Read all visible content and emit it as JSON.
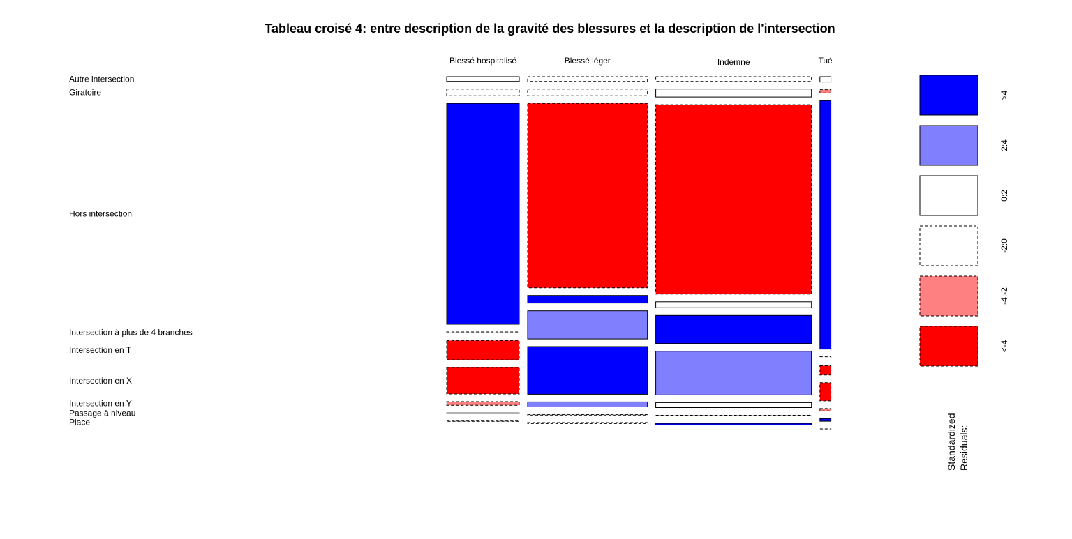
{
  "chart_data": {
    "type": "mosaic",
    "title": "Tableau croisé 4: entre description de la gravité des blessures et la description de l'intersection",
    "column_labels": [
      "Blessé hospitalisé",
      "Blessé léger",
      "Indemne",
      "Tué"
    ],
    "row_labels": [
      "Autre intersection",
      "Giratoire",
      "Hors intersection",
      "Intersection à plus de 4 branches",
      "Intersection en T",
      "Intersection en X",
      "Intersection en Y",
      "Passage à niveau",
      "Place"
    ],
    "column_shares": [
      0.198,
      0.327,
      0.425,
      0.03
    ],
    "row_shares_by_column": [
      [
        0.014,
        0.02,
        0.667,
        0.003,
        0.058,
        0.08,
        0.011,
        0.001,
        0.001
      ],
      [
        0.014,
        0.02,
        0.557,
        0.023,
        0.085,
        0.144,
        0.015,
        0.001,
        0.003
      ],
      [
        0.014,
        0.024,
        0.572,
        0.018,
        0.085,
        0.132,
        0.015,
        0.001,
        0.005
      ],
      [
        0.016,
        0.01,
        0.75,
        0.004,
        0.028,
        0.055,
        0.007,
        0.008,
        0.003
      ]
    ],
    "residual_class_by_column": [
      [
        "0:2",
        "-2:0",
        ">4",
        "-2:0",
        "<-4",
        "<-4",
        "-4:-2",
        "0:2",
        "-2:0"
      ],
      [
        "-2:0",
        "-2:0",
        "<-4",
        ">4",
        "2:4",
        ">4",
        "2:4",
        "-2:0",
        "-2:0"
      ],
      [
        "-2:0",
        "0:2",
        "<-4",
        "0:2",
        ">4",
        "2:4",
        "0:2",
        "-2:0",
        ">4"
      ],
      [
        "0:2",
        "-4:-2",
        ">4",
        "-2:0",
        "<-4",
        "<-4",
        "-4:-2",
        ">4",
        "-2:0"
      ]
    ],
    "legend": {
      "title": "Standardized\nResiduals:",
      "position": "right",
      "classes": [
        {
          "label": ">4",
          "fill": "#0000FF",
          "dashed": false
        },
        {
          "label": "2:4",
          "fill": "#8080FF",
          "dashed": false
        },
        {
          "label": "0:2",
          "fill": "#FFFFFF",
          "dashed": false
        },
        {
          "label": "-2:0",
          "fill": "#FFFFFF",
          "dashed": true
        },
        {
          "label": "-4:-2",
          "fill": "#FF8080",
          "dashed": true
        },
        {
          "label": "<-4",
          "fill": "#FF0000",
          "dashed": true
        }
      ]
    }
  }
}
